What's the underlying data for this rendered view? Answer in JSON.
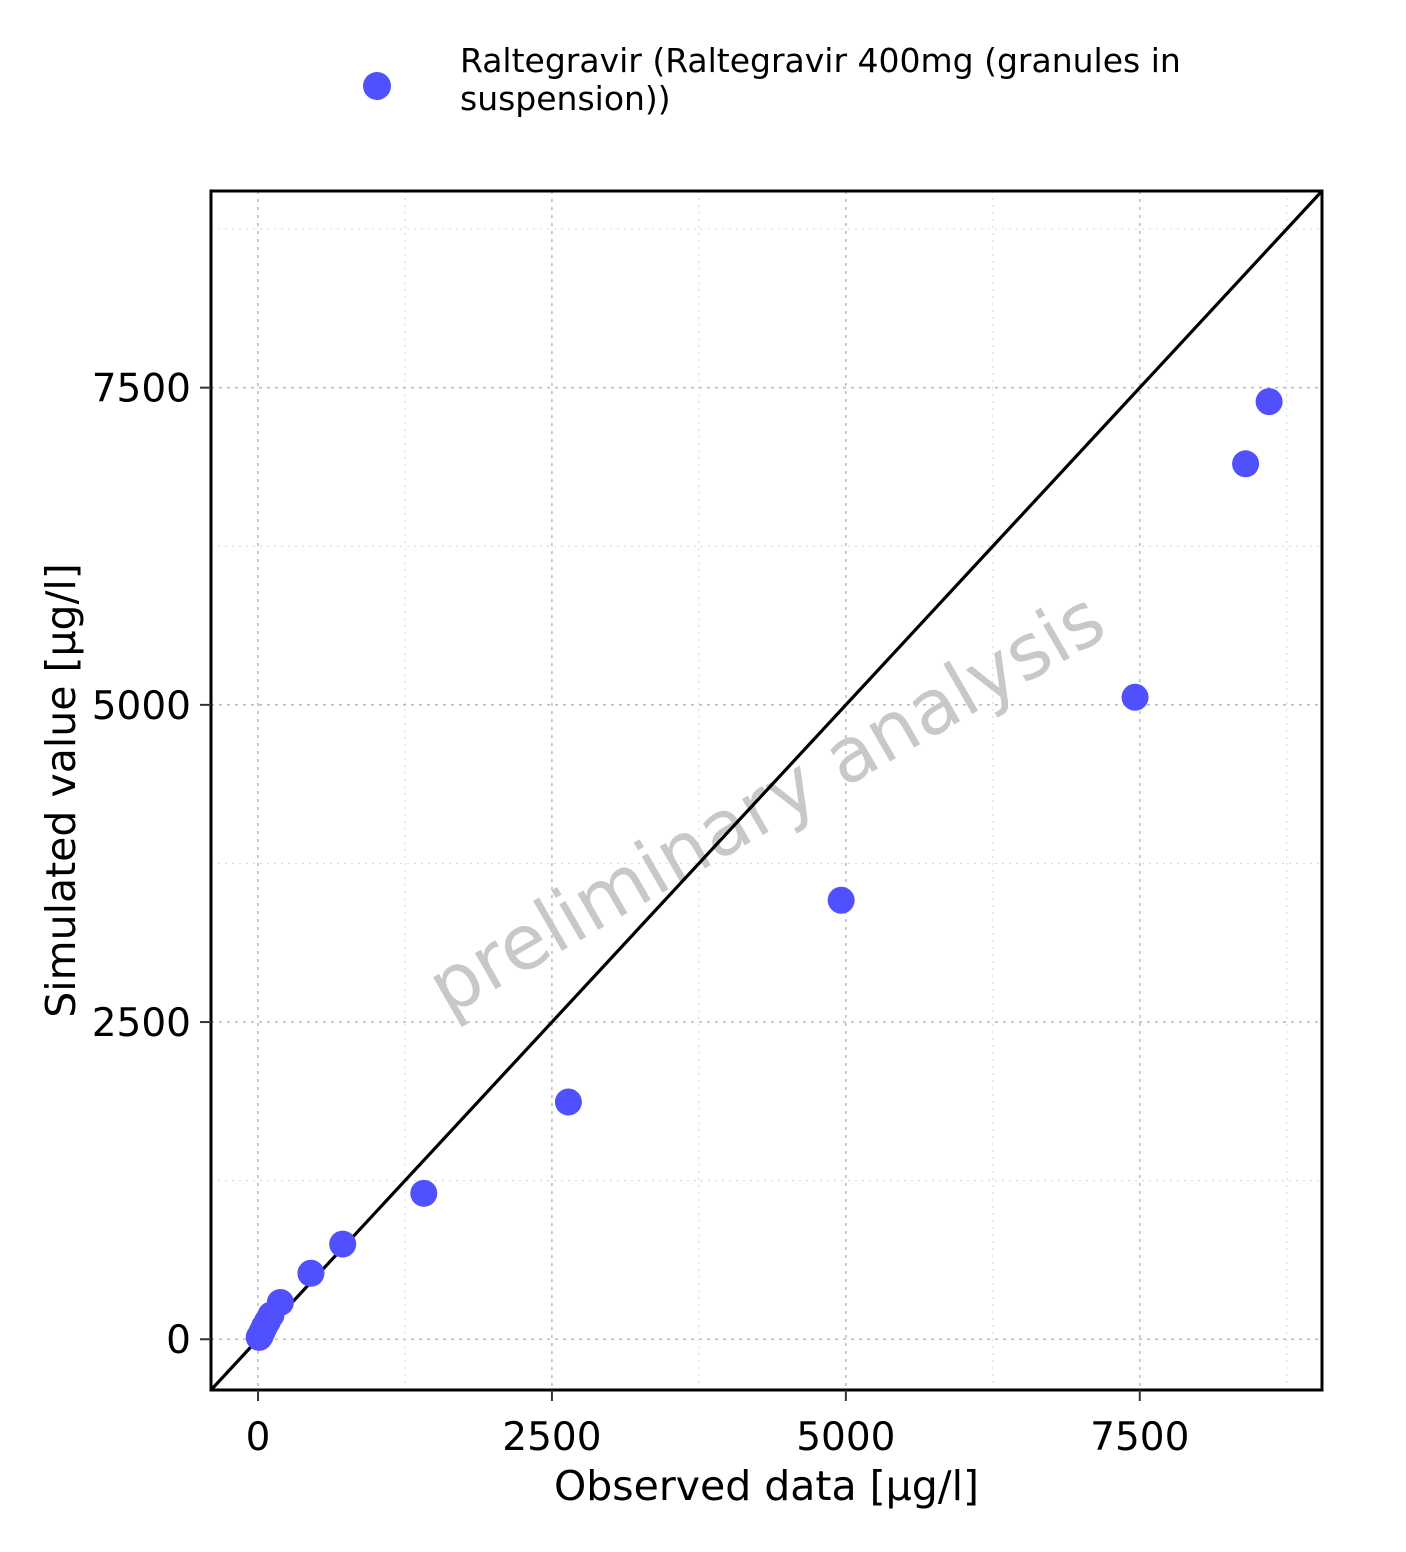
{
  "chart_data": {
    "type": "scatter",
    "series": [
      {
        "name": "Raltegravir (Raltegravir 400mg (granules in suspension))",
        "color": "#5050ff",
        "points": [
          {
            "x": 10,
            "y": 15
          },
          {
            "x": 20,
            "y": 30
          },
          {
            "x": 35,
            "y": 60
          },
          {
            "x": 55,
            "y": 100
          },
          {
            "x": 80,
            "y": 140
          },
          {
            "x": 110,
            "y": 190
          },
          {
            "x": 190,
            "y": 290
          },
          {
            "x": 450,
            "y": 520
          },
          {
            "x": 720,
            "y": 750
          },
          {
            "x": 1410,
            "y": 1150
          },
          {
            "x": 2640,
            "y": 1870
          },
          {
            "x": 4960,
            "y": 3460
          },
          {
            "x": 7460,
            "y": 5060
          },
          {
            "x": 8400,
            "y": 6900
          },
          {
            "x": 8600,
            "y": 7390
          }
        ]
      }
    ],
    "identity_line": true,
    "xlabel": "Observed data [µg/l]",
    "ylabel": "Simulated value [µg/l]",
    "xlim": [
      -400,
      9050
    ],
    "ylim": [
      -400,
      9050
    ],
    "xticks": [
      0,
      2500,
      5000,
      7500
    ],
    "yticks": [
      0,
      2500,
      5000,
      7500
    ],
    "xtick_labels": [
      "0",
      "2500",
      "5000",
      "7500"
    ],
    "ytick_labels": [
      "0",
      "2500",
      "5000",
      "7500"
    ],
    "grid": true,
    "legend_position": "top",
    "watermark": "preliminary analysis"
  }
}
